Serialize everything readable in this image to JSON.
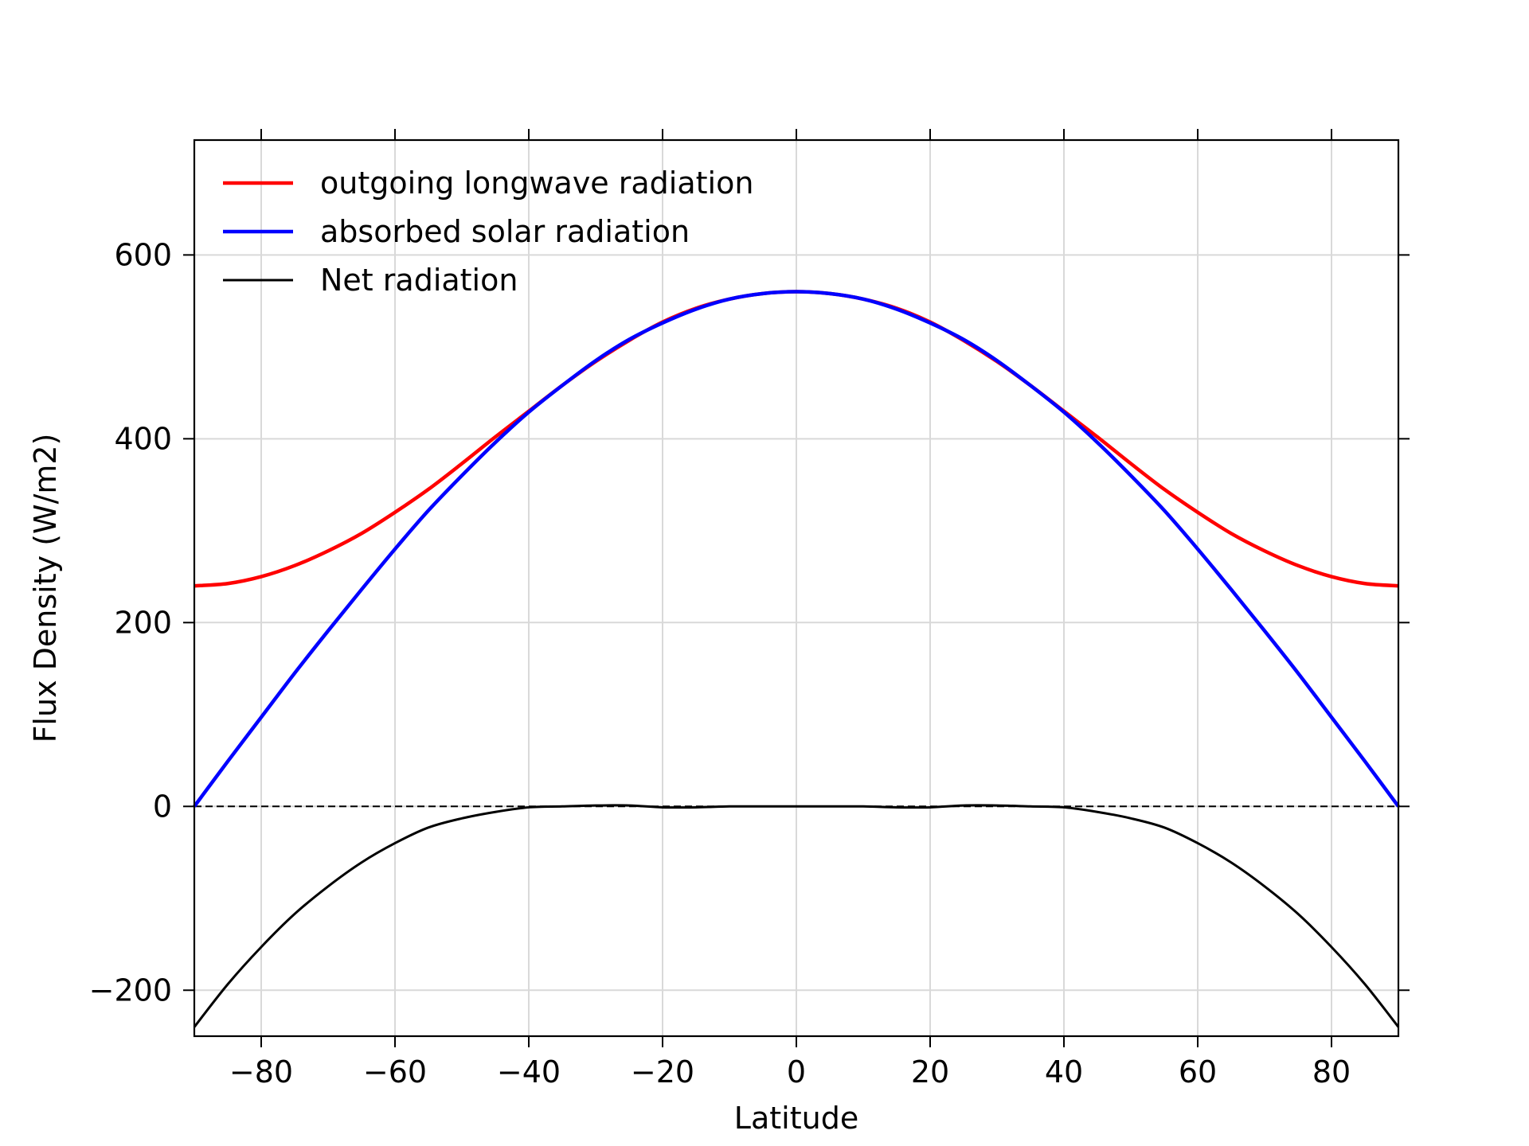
{
  "chart_data": {
    "type": "line",
    "title": "",
    "xlabel": "Latitude",
    "ylabel": "Flux Density (W/m2)",
    "xlim": [
      -90,
      90
    ],
    "ylim": [
      -250,
      725
    ],
    "xticks": [
      -80,
      -60,
      -40,
      -20,
      0,
      20,
      40,
      60,
      80
    ],
    "xtick_labels": [
      "−80",
      "−60",
      "−40",
      "−20",
      "0",
      "20",
      "40",
      "60",
      "80"
    ],
    "yticks": [
      -200,
      0,
      200,
      400,
      600
    ],
    "ytick_labels": [
      "−200",
      "0",
      "200",
      "400",
      "600"
    ],
    "grid": true,
    "legend_position": "top-left",
    "reference_line": {
      "y": 0,
      "style": "dashed",
      "color": "#000000"
    },
    "x": [
      -90,
      -85,
      -80,
      -75,
      -70,
      -65,
      -60,
      -55,
      -50,
      -45,
      -40,
      -35,
      -30,
      -25,
      -20,
      -15,
      -10,
      -5,
      0,
      5,
      10,
      15,
      20,
      25,
      30,
      35,
      40,
      45,
      50,
      55,
      60,
      65,
      70,
      75,
      80,
      85,
      90
    ],
    "series": [
      {
        "name": "outgoing longwave radiation",
        "color": "#ff0000",
        "values": [
          240,
          242.5,
          250,
          262,
          278,
          297,
          320,
          345,
          373,
          402,
          430,
          458,
          484,
          507,
          527,
          542,
          552,
          558,
          560,
          558,
          552,
          542,
          527,
          507,
          484,
          458,
          430,
          402,
          373,
          345,
          320,
          297,
          278,
          262,
          250,
          242.5,
          240
        ]
      },
      {
        "name": "absorbed solar radiation",
        "color": "#0000ff",
        "values": [
          0,
          49,
          97,
          145,
          191,
          236,
          280,
          322,
          360,
          396,
          429,
          458,
          485,
          508,
          526,
          541,
          552,
          558,
          560,
          558,
          552,
          541,
          526,
          508,
          485,
          458,
          429,
          396,
          360,
          322,
          280,
          236,
          191,
          145,
          97,
          49,
          0
        ]
      },
      {
        "name": "Net radiation",
        "color": "#000000",
        "values": [
          -240,
          -193.5,
          -153,
          -117,
          -87,
          -61,
          -40,
          -23,
          -13,
          -6,
          -1,
          0,
          1,
          1,
          -1,
          -1,
          0,
          0,
          0,
          0,
          0,
          -1,
          -1,
          1,
          1,
          0,
          -1,
          -6,
          -13,
          -23,
          -40,
          -61,
          -87,
          -117,
          -153,
          -193.5,
          -240
        ]
      }
    ]
  }
}
